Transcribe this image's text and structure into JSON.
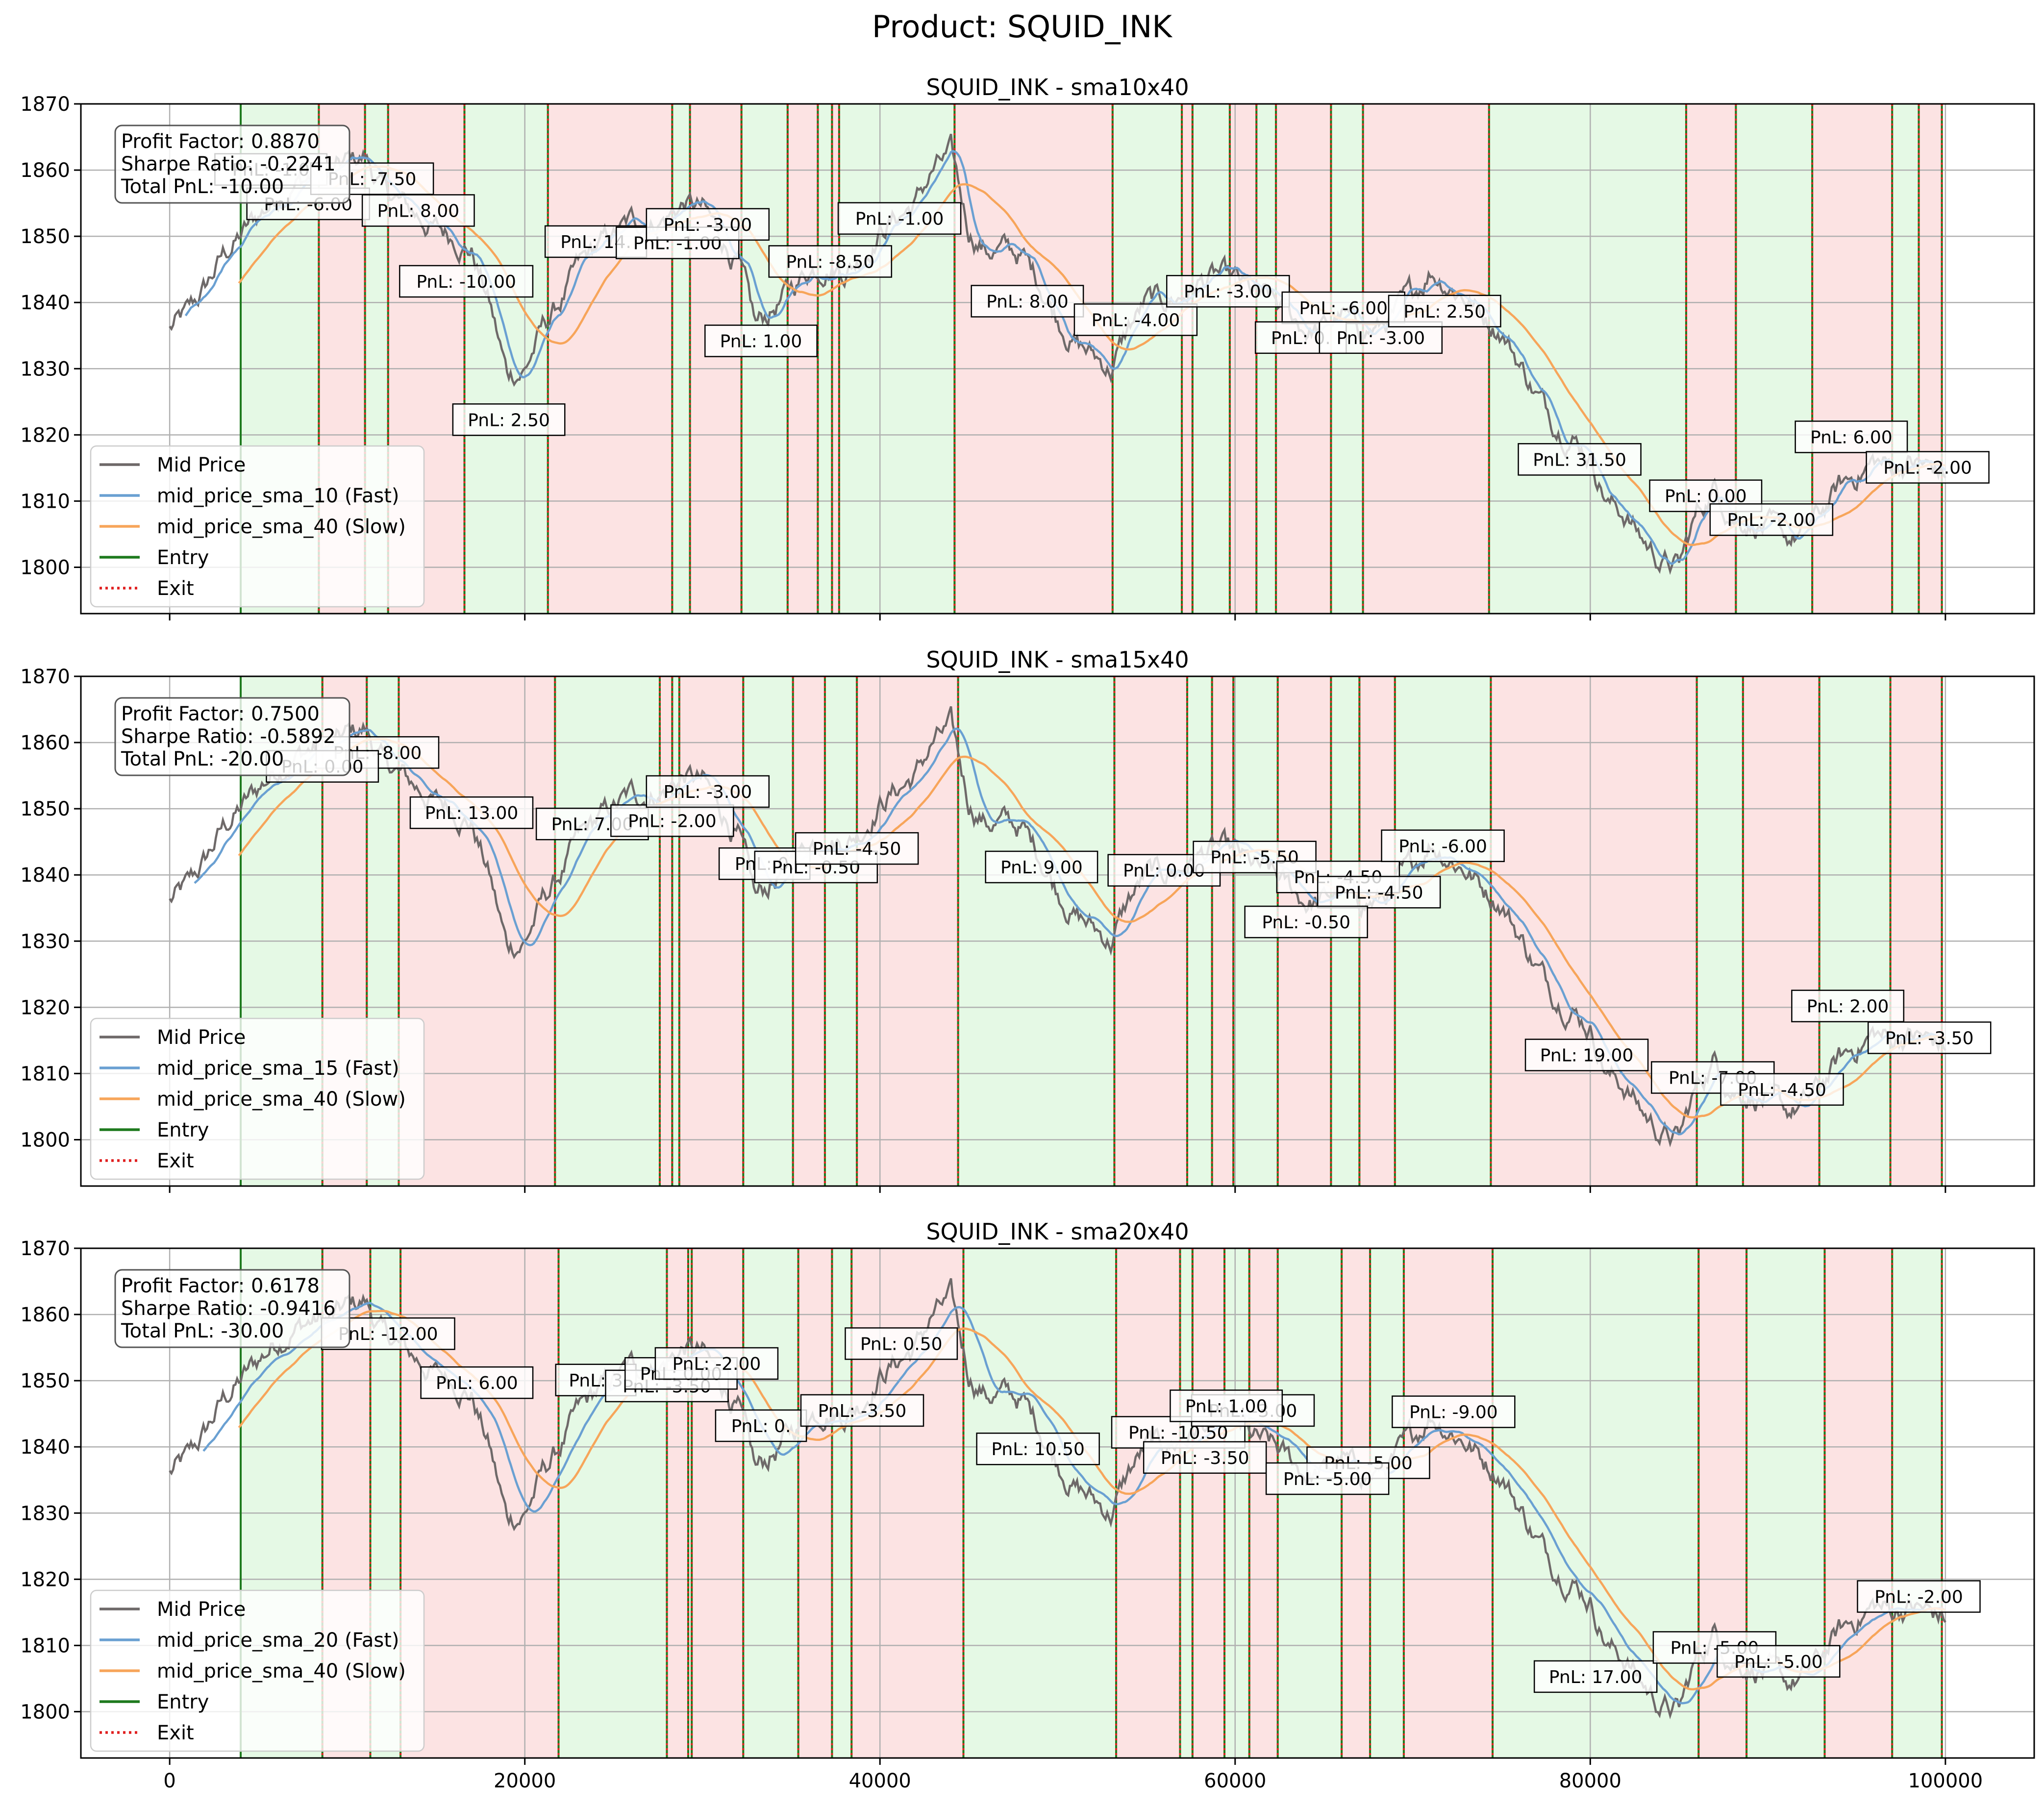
{
  "figure_title": "Product: SQUID_INK",
  "colors": {
    "mid": "#6e6969",
    "fast": "#6aa0d2",
    "slow": "#f7a55a",
    "entry": "#1e7a1e",
    "exit": "#e02020",
    "long_region": "#e5f9e5",
    "short_region": "#fce3e3"
  },
  "chart_data": [
    {
      "type": "line",
      "title": "SQUID_INK - sma10x40",
      "xlim": [
        -5000,
        105000
      ],
      "ylim": [
        1793,
        1870
      ],
      "xticks": [
        0,
        20000,
        40000,
        60000,
        80000,
        100000
      ],
      "xtick_labels": [
        "",
        "",
        "",
        "",
        "",
        ""
      ],
      "yticks": [
        1800,
        1810,
        1820,
        1830,
        1840,
        1850,
        1860,
        1870
      ],
      "ytick_labels": [
        "1800",
        "1810",
        "1820",
        "1830",
        "1840",
        "1850",
        "1860",
        "1870"
      ],
      "grid": true,
      "legend_position": "lower-left",
      "legend": [
        "Mid Price",
        "mid_price_sma_10 (Fast)",
        "mid_price_sma_40 (Slow)",
        "Entry",
        "Exit"
      ],
      "stats": [
        "Profit Factor: 0.8870",
        "Sharpe Ratio: -0.2241",
        "Total PnL: -10.00"
      ],
      "fast_window": 10,
      "signal_times": [
        4000,
        8400,
        11000,
        12300,
        16600,
        21300,
        28300,
        29300,
        32200,
        34800,
        36500,
        37300,
        37700,
        44200,
        53100,
        57000,
        57600,
        59700,
        61200,
        62300,
        65400,
        67200,
        74300,
        85400,
        88200,
        92500,
        97000,
        98500,
        99800
      ],
      "pnl_labels": [
        {
          "text": "PnL: -6.00",
          "x": 7800,
          "y": 1854.9
        },
        {
          "text": "PnL: -1.0",
          "x": 5700,
          "y": 1860.1
        },
        {
          "text": "PnL: -7.50",
          "x": 11400,
          "y": 1858.7
        },
        {
          "text": "PnL: 8.00",
          "x": 14000,
          "y": 1853.9
        },
        {
          "text": "PnL: -10.00",
          "x": 16700,
          "y": 1843.2
        },
        {
          "text": "PnL: 2.50",
          "x": 19100,
          "y": 1822.3
        },
        {
          "text": "PnL: 14.",
          "x": 24000,
          "y": 1849.2
        },
        {
          "text": "PnL: -1.00",
          "x": 28600,
          "y": 1849.0
        },
        {
          "text": "PnL: -3.00",
          "x": 30300,
          "y": 1851.8
        },
        {
          "text": "PnL: 1.00",
          "x": 33300,
          "y": 1834.2
        },
        {
          "text": "PnL: -8.50",
          "x": 37200,
          "y": 1846.2
        },
        {
          "text": "PnL: -1.00",
          "x": 41100,
          "y": 1852.7
        },
        {
          "text": "PnL: 8.00",
          "x": 48300,
          "y": 1840.2
        },
        {
          "text": "PnL: -4.00",
          "x": 54400,
          "y": 1837.4
        },
        {
          "text": "PnL: -3.00",
          "x": 59600,
          "y": 1841.7
        },
        {
          "text": "PnL: -6.00",
          "x": 66100,
          "y": 1839.2
        },
        {
          "text": "PnL: 0.",
          "x": 63700,
          "y": 1834.7
        },
        {
          "text": "PnL: -3.00",
          "x": 68200,
          "y": 1834.7
        },
        {
          "text": "PnL: 2.50",
          "x": 71800,
          "y": 1838.7
        },
        {
          "text": "PnL: 31.50",
          "x": 79400,
          "y": 1816.3
        },
        {
          "text": "PnL: 0.00",
          "x": 86500,
          "y": 1810.8
        },
        {
          "text": "PnL: -2.00",
          "x": 90200,
          "y": 1807.2
        },
        {
          "text": "PnL: 6.00",
          "x": 94700,
          "y": 1819.7
        },
        {
          "text": "PnL: -2.00",
          "x": 99000,
          "y": 1815.1
        }
      ]
    },
    {
      "type": "line",
      "title": "SQUID_INK - sma15x40",
      "xlim": [
        -5000,
        105000
      ],
      "ylim": [
        1793,
        1870
      ],
      "xticks": [
        0,
        20000,
        40000,
        60000,
        80000,
        100000
      ],
      "xtick_labels": [
        "",
        "",
        "",
        "",
        "",
        ""
      ],
      "yticks": [
        1800,
        1810,
        1820,
        1830,
        1840,
        1850,
        1860,
        1870
      ],
      "ytick_labels": [
        "1800",
        "1810",
        "1820",
        "1830",
        "1840",
        "1850",
        "1860",
        "1870"
      ],
      "grid": true,
      "legend_position": "lower-left",
      "legend": [
        "Mid Price",
        "mid_price_sma_15 (Fast)",
        "mid_price_sma_40 (Slow)",
        "Entry",
        "Exit"
      ],
      "stats": [
        "Profit Factor: 0.7500",
        "Sharpe Ratio: -0.5892",
        "Total PnL: -20.00"
      ],
      "fast_window": 15,
      "signal_times": [
        4000,
        8600,
        11100,
        12900,
        21700,
        27600,
        28300,
        28700,
        32300,
        35100,
        36900,
        38700,
        44400,
        53200,
        57300,
        58700,
        59900,
        62400,
        65400,
        67000,
        69000,
        74400,
        86000,
        88600,
        92900,
        96900,
        99800
      ],
      "pnl_labels": [
        {
          "text": "PnL: -8.00",
          "x": 11700,
          "y": 1858.5
        },
        {
          "text": "PnL: 0.00",
          "x": 8600,
          "y": 1856.4
        },
        {
          "text": "PnL: 13.00",
          "x": 17000,
          "y": 1849.4
        },
        {
          "text": "PnL: 7.00",
          "x": 23800,
          "y": 1847.7
        },
        {
          "text": "PnL: -2.00",
          "x": 28300,
          "y": 1848.2
        },
        {
          "text": "PnL: -3.00",
          "x": 30300,
          "y": 1852.6
        },
        {
          "text": "PnL: 0.",
          "x": 33500,
          "y": 1841.7
        },
        {
          "text": "PnL: -0.50",
          "x": 36400,
          "y": 1841.2
        },
        {
          "text": "PnL: -4.50",
          "x": 38700,
          "y": 1844.0
        },
        {
          "text": "PnL: 9.00",
          "x": 49100,
          "y": 1841.2
        },
        {
          "text": "PnL: 0.00",
          "x": 56000,
          "y": 1840.7
        },
        {
          "text": "PnL: -5.50",
          "x": 61100,
          "y": 1842.7
        },
        {
          "text": "PnL: -4.50",
          "x": 65800,
          "y": 1839.7
        },
        {
          "text": "PnL: -4.50",
          "x": 68100,
          "y": 1837.4
        },
        {
          "text": "PnL: -0.50",
          "x": 64000,
          "y": 1832.9
        },
        {
          "text": "PnL: -6.00",
          "x": 71700,
          "y": 1844.4
        },
        {
          "text": "PnL: 19.00",
          "x": 79800,
          "y": 1812.8
        },
        {
          "text": "PnL: -7.00",
          "x": 86900,
          "y": 1809.4
        },
        {
          "text": "PnL: -4.50",
          "x": 90800,
          "y": 1807.6
        },
        {
          "text": "PnL: 2.00",
          "x": 94500,
          "y": 1820.2
        },
        {
          "text": "PnL: -3.50",
          "x": 99100,
          "y": 1815.4
        }
      ]
    },
    {
      "type": "line",
      "title": "SQUID_INK - sma20x40",
      "xlim": [
        -5000,
        105000
      ],
      "ylim": [
        1793,
        1870
      ],
      "xticks": [
        0,
        20000,
        40000,
        60000,
        80000,
        100000
      ],
      "xtick_labels": [
        "0",
        "20000",
        "40000",
        "60000",
        "80000",
        "100000"
      ],
      "yticks": [
        1800,
        1810,
        1820,
        1830,
        1840,
        1850,
        1860,
        1870
      ],
      "ytick_labels": [
        "1800",
        "1810",
        "1820",
        "1830",
        "1840",
        "1850",
        "1860",
        "1870"
      ],
      "grid": true,
      "legend_position": "lower-left",
      "legend": [
        "Mid Price",
        "mid_price_sma_20 (Fast)",
        "mid_price_sma_40 (Slow)",
        "Entry",
        "Exit"
      ],
      "stats": [
        "Profit Factor: 0.6178",
        "Sharpe Ratio: -0.9416",
        "Total PnL: -30.00"
      ],
      "fast_window": 20,
      "signal_times": [
        4000,
        8600,
        11300,
        13000,
        21900,
        28000,
        29200,
        29400,
        32300,
        35400,
        37300,
        38400,
        44700,
        53300,
        56900,
        57600,
        59400,
        60800,
        62400,
        66000,
        67600,
        69500,
        74500,
        86100,
        88800,
        93200,
        97000,
        99800
      ],
      "pnl_labels": [
        {
          "text": "PnL: -12.00",
          "x": 12300,
          "y": 1857.1
        },
        {
          "text": "PnL: 6.00",
          "x": 17300,
          "y": 1849.7
        },
        {
          "text": "PnL: 3",
          "x": 24000,
          "y": 1850.1
        },
        {
          "text": "PnL: -3.50",
          "x": 28000,
          "y": 1849.2
        },
        {
          "text": "PnL: 0.00",
          "x": 28800,
          "y": 1851.1
        },
        {
          "text": "PnL: -2.00",
          "x": 30800,
          "y": 1852.6
        },
        {
          "text": "PnL: 0.",
          "x": 33300,
          "y": 1843.2
        },
        {
          "text": "PnL: -3.50",
          "x": 39000,
          "y": 1845.5
        },
        {
          "text": "PnL: 0.50",
          "x": 41200,
          "y": 1855.6
        },
        {
          "text": "PnL: 10.50",
          "x": 48900,
          "y": 1839.7
        },
        {
          "text": "PnL: -10.50",
          "x": 56800,
          "y": 1842.2
        },
        {
          "text": "PnL: -3.50",
          "x": 58300,
          "y": 1838.4
        },
        {
          "text": "PnL: -3.00",
          "x": 61000,
          "y": 1845.5
        },
        {
          "text": "PnL: 1.00",
          "x": 59500,
          "y": 1846.2
        },
        {
          "text": "PnL: -5.00",
          "x": 67500,
          "y": 1837.6
        },
        {
          "text": "PnL: -5.00",
          "x": 65200,
          "y": 1835.2
        },
        {
          "text": "PnL: -9.00",
          "x": 72300,
          "y": 1845.3
        },
        {
          "text": "PnL: 17.00",
          "x": 80300,
          "y": 1805.3
        },
        {
          "text": "PnL: -5.00",
          "x": 87000,
          "y": 1809.7
        },
        {
          "text": "PnL: -5.00",
          "x": 90600,
          "y": 1807.6
        },
        {
          "text": "PnL: -2.00",
          "x": 98500,
          "y": 1817.4
        }
      ]
    }
  ],
  "price_path": {
    "x": [
      0,
      1000,
      2000,
      3000,
      4000,
      5000,
      6000,
      7000,
      8000,
      9000,
      10000,
      11000,
      12000,
      13000,
      14000,
      15000,
      16000,
      17000,
      18000,
      19000,
      20000,
      21000,
      22000,
      23000,
      24000,
      25000,
      26000,
      27000,
      28000,
      29000,
      30000,
      31000,
      32000,
      33000,
      34000,
      35000,
      36000,
      37000,
      38000,
      39000,
      40000,
      41000,
      42000,
      43000,
      44000,
      45000,
      46000,
      47000,
      48000,
      49000,
      50000,
      51000,
      52000,
      53000,
      54000,
      55000,
      56000,
      57000,
      58000,
      59000,
      60000,
      61000,
      62000,
      63000,
      64000,
      65000,
      66000,
      67000,
      68000,
      69000,
      70000,
      71000,
      72000,
      73000,
      74000,
      75000,
      76000,
      77000,
      78000,
      79000,
      80000,
      81000,
      82000,
      83000,
      84000,
      85000,
      86000,
      87000,
      88000,
      89000,
      90000,
      91000,
      92000,
      93000,
      94000,
      95000,
      96000,
      97000,
      98000,
      99000,
      100000
    ],
    "y": [
      1836,
      1838,
      1842,
      1847,
      1850,
      1853,
      1856,
      1858,
      1859,
      1859,
      1861,
      1862,
      1857,
      1855,
      1853,
      1851,
      1850,
      1848,
      1840,
      1829,
      1830,
      1836,
      1840,
      1845,
      1848,
      1850,
      1852,
      1852,
      1853,
      1855,
      1854,
      1850,
      1846,
      1836,
      1839,
      1842,
      1845,
      1846,
      1845,
      1847,
      1851,
      1853,
      1855,
      1860,
      1862,
      1851,
      1848,
      1848,
      1847,
      1843,
      1838,
      1834,
      1832,
      1830,
      1836,
      1840,
      1840,
      1841,
      1843,
      1844,
      1843,
      1841,
      1840,
      1838,
      1836,
      1836,
      1838,
      1836,
      1836,
      1838,
      1841,
      1845,
      1843,
      1841,
      1838,
      1836,
      1831,
      1826,
      1822,
      1820,
      1817,
      1810,
      1808,
      1804,
      1801,
      1800,
      1808,
      1812,
      1808,
      1807,
      1806,
      1804,
      1805,
      1808,
      1812,
      1814,
      1816,
      1815,
      1816,
      1815,
      1814
    ]
  }
}
